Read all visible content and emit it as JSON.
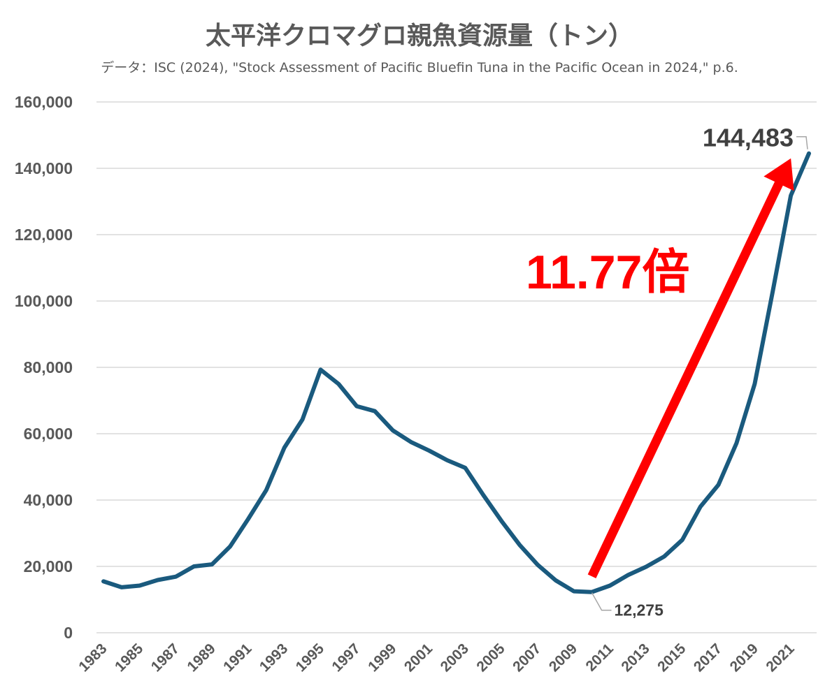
{
  "title": "太平洋クロマグロ親魚資源量（トン）",
  "subtitle": "データ：ISC (2024), \"Stock Assessment of Pacific Bluefin Tuna in the Pacific Ocean in 2024,\" p.6.",
  "chart_data": {
    "type": "line",
    "title": "太平洋クロマグロ親魚資源量（トン）",
    "xlabel": "",
    "ylabel": "",
    "ylim": [
      0,
      160000
    ],
    "yticks": [
      0,
      20000,
      40000,
      60000,
      80000,
      100000,
      120000,
      140000,
      160000
    ],
    "ytick_labels": [
      "0",
      "20,000",
      "40,000",
      "60,000",
      "80,000",
      "100,000",
      "120,000",
      "140,000",
      "160,000"
    ],
    "xtick_labels": [
      "1983",
      "1985",
      "1987",
      "1989",
      "1991",
      "1993",
      "1995",
      "1997",
      "1999",
      "2001",
      "2003",
      "2005",
      "2007",
      "2009",
      "2011",
      "2013",
      "2015",
      "2017",
      "2019",
      "2021"
    ],
    "grid": true,
    "line_color": "#1a5a7e",
    "x": [
      1983,
      1984,
      1985,
      1986,
      1987,
      1988,
      1989,
      1990,
      1991,
      1992,
      1993,
      1994,
      1995,
      1996,
      1997,
      1998,
      1999,
      2000,
      2001,
      2002,
      2003,
      2004,
      2005,
      2006,
      2007,
      2008,
      2009,
      2010,
      2011,
      2012,
      2013,
      2014,
      2015,
      2016,
      2017,
      2018,
      2019,
      2020,
      2021,
      2022
    ],
    "series": [
      {
        "values": [
          15500,
          13700,
          14200,
          15900,
          16900,
          20000,
          20600,
          26000,
          34300,
          43000,
          55800,
          64300,
          79300,
          75000,
          68300,
          66800,
          61000,
          57500,
          54900,
          52000,
          49700,
          41500,
          33700,
          26500,
          20500,
          15800,
          12500,
          12275,
          14200,
          17400,
          19900,
          23000,
          28000,
          38000,
          44600,
          57200,
          75000,
          103000,
          131800,
          144483
        ]
      }
    ],
    "data_labels": [
      {
        "x": 2010,
        "text": "12,275"
      },
      {
        "x": 2022,
        "text": "144,483"
      }
    ],
    "annotation": {
      "text": "11.77倍",
      "color": "#ff0000",
      "arrow_from": [
        2010,
        17000
      ],
      "arrow_to": [
        2021,
        143000
      ]
    }
  }
}
